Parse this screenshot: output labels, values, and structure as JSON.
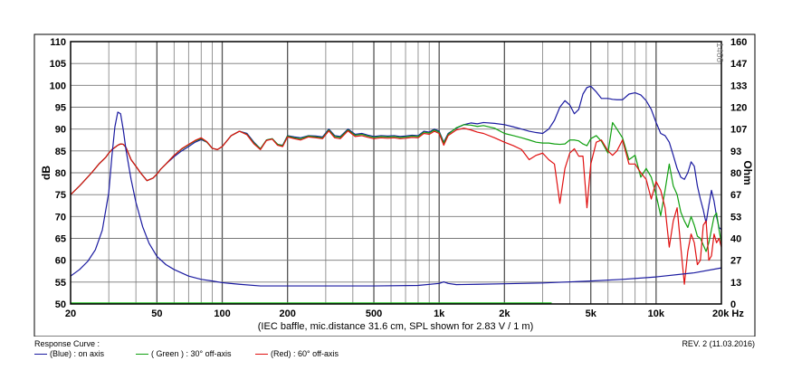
{
  "chart_data": {
    "type": "line",
    "title": "",
    "xlabel": "(IEC baffle, mic.distance 31.6 cm, SPL shown for 2.83 V / 1 m)",
    "ylabel": "dB",
    "y2label": "Ohm",
    "x_scale": "log",
    "xlim": [
      20,
      20000
    ],
    "ylim": [
      50,
      110
    ],
    "y2lim": [
      0,
      160
    ],
    "grid": true,
    "corner_label": "1466",
    "x_ticks": [
      {
        "value": 20,
        "label": "20"
      },
      {
        "value": 50,
        "label": "50"
      },
      {
        "value": 100,
        "label": "100"
      },
      {
        "value": 200,
        "label": "200"
      },
      {
        "value": 500,
        "label": "500"
      },
      {
        "value": 1000,
        "label": "1k"
      },
      {
        "value": 2000,
        "label": "2k"
      },
      {
        "value": 5000,
        "label": "5k"
      },
      {
        "value": 10000,
        "label": "10k"
      },
      {
        "value": 20000,
        "label": "20k Hz"
      }
    ],
    "y_ticks": [
      "110",
      "105",
      "100",
      "95",
      "90",
      "85",
      "80",
      "75",
      "70",
      "65",
      "60",
      "55",
      "50"
    ],
    "y2_ticks": [
      "160",
      "147",
      "133",
      "120",
      "107",
      "93",
      "80",
      "67",
      "53",
      "40",
      "27",
      "13",
      "0"
    ],
    "series": [
      {
        "name": "(Blue) : on axis",
        "color": "#1a1aa0",
        "x": [
          20,
          22,
          25,
          27,
          29,
          30,
          31,
          32,
          33,
          34,
          35,
          36,
          38,
          40,
          42,
          45,
          48,
          50,
          52,
          55,
          60,
          65,
          70,
          75,
          80,
          85,
          90,
          95,
          100,
          110,
          120,
          130,
          140,
          150,
          160,
          170,
          180,
          190,
          200,
          215,
          230,
          250,
          270,
          290,
          310,
          330,
          350,
          380,
          410,
          440,
          470,
          500,
          540,
          580,
          620,
          660,
          700,
          750,
          800,
          850,
          900,
          950,
          1000,
          1050,
          1100,
          1200,
          1300,
          1400,
          1500,
          1600,
          1800,
          2000,
          2200,
          2400,
          2600,
          2800,
          3000,
          3200,
          3400,
          3600,
          3800,
          4000,
          4200,
          4400,
          4600,
          4800,
          5000,
          5300,
          5600,
          6000,
          6300,
          6600,
          7000,
          7500,
          8000,
          8500,
          9000,
          9500,
          10000,
          10500,
          11000,
          11500,
          12000,
          12500,
          13000,
          13500,
          14000,
          14500,
          15000,
          15500,
          16000,
          16500,
          17000,
          17500,
          18000,
          18500,
          19000,
          19500,
          20000
        ],
        "y": [
          75,
          77,
          80,
          82,
          83.5,
          84.5,
          85.3,
          85.8,
          86.3,
          86.6,
          86.5,
          85.8,
          83,
          81.5,
          80,
          78.2,
          78.8,
          79.7,
          80.8,
          82,
          83.7,
          85,
          86,
          87,
          87.6,
          87,
          85.6,
          85.3,
          86,
          88.5,
          89.5,
          89,
          87,
          85.5,
          87.5,
          87.8,
          86.5,
          86.3,
          88.5,
          88.2,
          88,
          88.5,
          88.4,
          88.2,
          90,
          88.5,
          88.3,
          90,
          88.8,
          89,
          88.6,
          88.3,
          88.5,
          88.4,
          88.5,
          88.3,
          88.4,
          88.6,
          88.5,
          89.5,
          89.3,
          90,
          89.5,
          87,
          89,
          90.2,
          91,
          91.4,
          91.2,
          91.5,
          91.3,
          91,
          90.5,
          90,
          89.5,
          89.2,
          89,
          90,
          92,
          95,
          96.5,
          95.5,
          93.5,
          94.5,
          98,
          99.5,
          99.8,
          98.5,
          97,
          97,
          96.8,
          96.7,
          96.7,
          98,
          98.3,
          97.8,
          96.5,
          94.5,
          91.5,
          89,
          88.5,
          87,
          84,
          81,
          79,
          78.5,
          80,
          82.5,
          81.5,
          77,
          74,
          71.5,
          68.5,
          72.5,
          76,
          73.5,
          70,
          67.5,
          67
        ]
      },
      {
        "name": "( Green ) : 30° off-axis",
        "color": "#10a010",
        "x": [
          20,
          22,
          25,
          27,
          29,
          30,
          31,
          32,
          33,
          34,
          35,
          36,
          38,
          40,
          42,
          45,
          48,
          50,
          52,
          55,
          60,
          65,
          70,
          75,
          80,
          85,
          90,
          95,
          100,
          110,
          120,
          130,
          140,
          150,
          160,
          170,
          180,
          190,
          200,
          215,
          230,
          250,
          270,
          290,
          310,
          330,
          350,
          380,
          410,
          440,
          470,
          500,
          540,
          580,
          620,
          660,
          700,
          750,
          800,
          850,
          900,
          950,
          1000,
          1050,
          1100,
          1200,
          1300,
          1400,
          1500,
          1600,
          1800,
          2000,
          2200,
          2400,
          2600,
          2800,
          3000,
          3200,
          3400,
          3600,
          3800,
          4000,
          4200,
          4400,
          4600,
          4800,
          5000,
          5300,
          5600,
          6000,
          6300,
          6600,
          7000,
          7500,
          8000,
          8500,
          9000,
          9500,
          10000,
          10500,
          11000,
          11500,
          12000,
          12500,
          13000,
          13500,
          14000,
          14500,
          15000,
          15500,
          16000,
          16500,
          17000,
          17500,
          18000,
          18500,
          19000,
          19500,
          20000
        ],
        "y": [
          75,
          77,
          80,
          82,
          83.5,
          84.5,
          85.3,
          85.8,
          86.3,
          86.6,
          86.5,
          85.8,
          83,
          81.5,
          80,
          78.2,
          78.8,
          79.7,
          80.8,
          82,
          84,
          85.4,
          86.4,
          87.3,
          87.8,
          87,
          85.6,
          85.3,
          86,
          88.5,
          89.5,
          88.8,
          86.8,
          85.5,
          87.5,
          87.8,
          86.5,
          86.2,
          88.4,
          88,
          87.8,
          88.4,
          88.2,
          88,
          89.8,
          88.3,
          88.1,
          89.8,
          88.6,
          88.8,
          88.4,
          88.1,
          88.3,
          88.2,
          88.3,
          88.1,
          88.2,
          88.4,
          88.3,
          89.3,
          89.1,
          89.8,
          89.3,
          86.8,
          88.8,
          90.3,
          91,
          90.9,
          90.6,
          90.8,
          90.2,
          89,
          88.5,
          88,
          87.5,
          87,
          86.8,
          86.8,
          86.6,
          86.5,
          86.6,
          87.5,
          87.5,
          87.3,
          86.6,
          86.2,
          87.8,
          88.5,
          87.2,
          84.5,
          91.5,
          90,
          88,
          83,
          84,
          79,
          81,
          79,
          75,
          70.2,
          76,
          82,
          77,
          75,
          71,
          69,
          67.5,
          70,
          68,
          65.5,
          65,
          63.5,
          62,
          64,
          67,
          70,
          70.8,
          67,
          64
        ]
      },
      {
        "name": "(Red) : 60° off-axis",
        "color": "#e01010",
        "x": [
          20,
          22,
          25,
          27,
          29,
          30,
          31,
          32,
          33,
          34,
          35,
          36,
          38,
          40,
          42,
          45,
          48,
          50,
          52,
          55,
          60,
          65,
          70,
          75,
          80,
          85,
          90,
          95,
          100,
          110,
          120,
          130,
          140,
          150,
          160,
          170,
          180,
          190,
          200,
          215,
          230,
          250,
          270,
          290,
          310,
          330,
          350,
          380,
          410,
          440,
          470,
          500,
          540,
          580,
          620,
          660,
          700,
          750,
          800,
          850,
          900,
          950,
          1000,
          1050,
          1100,
          1200,
          1300,
          1400,
          1500,
          1600,
          1800,
          2000,
          2200,
          2400,
          2600,
          2800,
          3000,
          3200,
          3400,
          3600,
          3800,
          4000,
          4200,
          4400,
          4600,
          4800,
          5000,
          5300,
          5600,
          6000,
          6300,
          6600,
          7000,
          7500,
          8000,
          8500,
          9000,
          9500,
          10000,
          10500,
          11000,
          11500,
          12000,
          12500,
          13000,
          13500,
          14000,
          14500,
          15000,
          15500,
          16000,
          16500,
          17000,
          17500,
          18000,
          18500,
          19000,
          19500,
          20000
        ],
        "y": [
          75,
          77,
          80,
          82,
          83.5,
          84.5,
          85.3,
          85.8,
          86.3,
          86.6,
          86.5,
          85.8,
          83,
          81.5,
          80,
          78.2,
          78.8,
          79.7,
          80.8,
          82,
          84,
          85.5,
          86.5,
          87.4,
          88,
          87.1,
          85.6,
          85.3,
          86,
          88.5,
          89.5,
          88.7,
          86.6,
          85.3,
          87.4,
          87.7,
          86.3,
          86,
          88.2,
          87.8,
          87.5,
          88.2,
          88,
          87.8,
          89.6,
          88,
          87.8,
          89.6,
          88.3,
          88.5,
          88.1,
          87.8,
          88,
          87.9,
          88,
          87.8,
          87.9,
          88.1,
          88,
          89,
          88.8,
          89.5,
          89,
          86.3,
          88.5,
          89.8,
          90.2,
          89.8,
          89.3,
          89,
          88,
          87,
          86.2,
          85.3,
          83,
          84,
          84.5,
          83,
          82,
          73,
          81,
          84.5,
          85.5,
          83.8,
          83.8,
          72,
          82,
          87,
          87.5,
          85,
          84,
          85,
          87.5,
          82,
          82,
          80,
          78.5,
          74,
          78,
          76,
          72,
          63,
          69,
          72,
          63,
          54.5,
          62,
          66,
          64,
          59,
          60,
          68,
          69,
          60,
          61,
          66,
          64,
          65,
          63
        ]
      },
      {
        "name": "",
        "axis": "y2",
        "color": "#1a1aa0",
        "x": [
          20,
          22,
          24,
          26,
          28,
          30,
          31,
          32,
          33,
          34,
          35,
          36,
          38,
          40,
          43,
          46,
          50,
          55,
          60,
          70,
          80,
          90,
          100,
          120,
          150,
          200,
          300,
          500,
          800,
          1000,
          1050,
          1100,
          1200,
          1500,
          2000,
          3000,
          5000,
          7000,
          10000,
          15000,
          20000
        ],
        "y": [
          17,
          21,
          26,
          33,
          45,
          68,
          90,
          108,
          117,
          116,
          106,
          94,
          76,
          62,
          47,
          37,
          29,
          24,
          21,
          17,
          15,
          14,
          13,
          12,
          11,
          11,
          11,
          11,
          11.3,
          12.5,
          13.5,
          12.5,
          11.8,
          12,
          12.3,
          12.8,
          14,
          15,
          16.5,
          19,
          22
        ]
      },
      {
        "name": "",
        "axis": "y2",
        "color": "#20c020",
        "x": [
          20,
          3300
        ],
        "y": [
          0.6,
          0.6
        ]
      }
    ]
  },
  "footer": {
    "response_label": "Response Curve :",
    "revision": "REV. 2 (11.03.2016)",
    "legend": [
      {
        "label": "(Blue) : on axis",
        "color": "#1a1aa0"
      },
      {
        "label": "( Green ) : 30° off-axis",
        "color": "#10a010"
      },
      {
        "label": "(Red) : 60° off-axis",
        "color": "#e01010"
      }
    ]
  }
}
